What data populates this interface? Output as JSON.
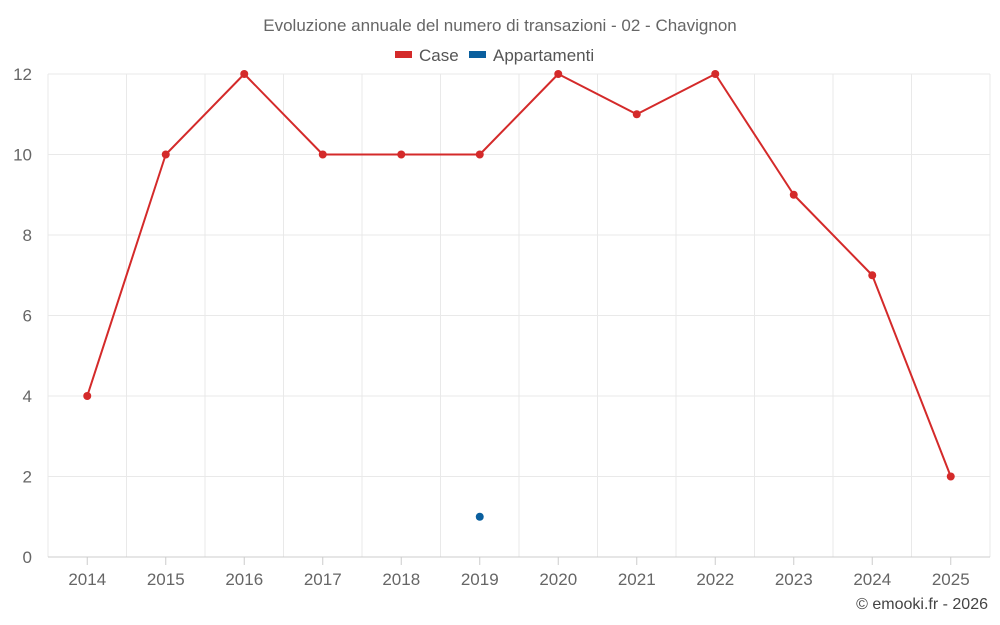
{
  "chart_data": {
    "type": "line",
    "title": "Evoluzione annuale del numero di transazioni - 02 - Chavignon",
    "categories": [
      "2014",
      "2015",
      "2016",
      "2017",
      "2018",
      "2019",
      "2020",
      "2021",
      "2022",
      "2023",
      "2024",
      "2025"
    ],
    "ylim": [
      0,
      12
    ],
    "yticks": [
      0,
      2,
      4,
      6,
      8,
      10,
      12
    ],
    "grid": true,
    "legend_position": "top-center",
    "series": [
      {
        "name": "Case",
        "color": "#d42a2a",
        "values": [
          4,
          10,
          12,
          10,
          10,
          10,
          12,
          11,
          12,
          9,
          7,
          2
        ]
      },
      {
        "name": "Appartamenti",
        "color": "#0a5f9e",
        "values": [
          null,
          null,
          null,
          null,
          null,
          1,
          null,
          null,
          null,
          null,
          null,
          null
        ]
      }
    ],
    "credit": "© emooki.fr - 2026"
  }
}
